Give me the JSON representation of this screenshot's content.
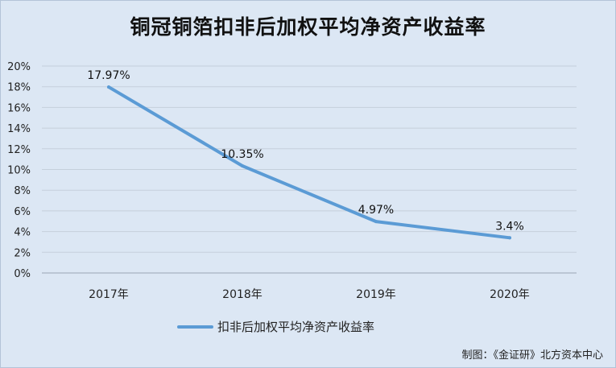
{
  "chart_data": {
    "type": "line",
    "title": "铜冠铜箔扣非后加权平均净资产收益率",
    "categories": [
      "2017年",
      "2018年",
      "2019年",
      "2020年"
    ],
    "series": [
      {
        "name": "扣非后加权平均净资产收益率",
        "values": [
          17.97,
          10.35,
          4.97,
          3.4
        ],
        "labels": [
          "17.97%",
          "10.35%",
          "4.97%",
          "3.4%"
        ],
        "color": "#5b9bd5"
      }
    ],
    "ylim": [
      0,
      20
    ],
    "yticks": [
      "0%",
      "2%",
      "4%",
      "6%",
      "8%",
      "10%",
      "12%",
      "14%",
      "16%",
      "18%",
      "20%"
    ],
    "grid": true,
    "legend": "bottom"
  },
  "footer": "制图：《金证研》北方资本中心"
}
